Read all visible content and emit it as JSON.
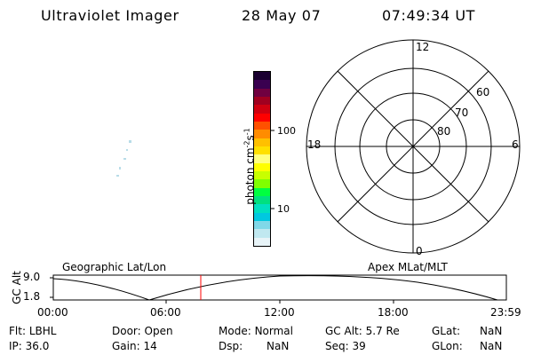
{
  "header": {
    "title": "Ultraviolet Imager",
    "date": "28 May 07",
    "time": "07:49:34 UT"
  },
  "colorbar": {
    "label": "photon cm",
    "label_sup1": "-2",
    "label_s": "s",
    "label_sup2": "-1",
    "tick_100": "100",
    "tick_10": "10",
    "colors_top_to_bottom": [
      "#1a0030",
      "#3a0050",
      "#700040",
      "#a00020",
      "#d00010",
      "#ff0000",
      "#ff5000",
      "#ff8c00",
      "#ffc000",
      "#ffe000",
      "#ffff80",
      "#ffff00",
      "#c8ff00",
      "#80ff00",
      "#00ff40",
      "#00e080",
      "#00e0c0",
      "#00c8e0",
      "#80d8e8",
      "#c0e8f0",
      "#e8f4f8"
    ]
  },
  "polar": {
    "label_12": "12",
    "label_18": "18",
    "label_6": "6",
    "label_0": "0",
    "label_60": "60",
    "label_70": "70",
    "label_80": "80"
  },
  "timeline": {
    "left_caption": "Geographic Lat/Lon",
    "right_caption": "Apex MLat/MLT",
    "axis_label": "GC Alt",
    "y_top": "9.0",
    "y_bottom": "1.8",
    "x_ticks": [
      "00:00",
      "06:00",
      "12:00",
      "18:00",
      "23:59"
    ],
    "current_marker_color": "#ff0000"
  },
  "status": {
    "filter_label": "Flt:",
    "filter_value": "LBHL",
    "door_label": "Door:",
    "door_value": "Open",
    "mode_label": "Mode:",
    "mode_value": "Normal",
    "gcalt_label": "GC Alt:",
    "gcalt_value": "5.7 Re",
    "glat_label": "GLat:",
    "glat_value": "NaN",
    "ip_label": "IP:",
    "ip_value": "36.0",
    "gain_label": "Gain:",
    "gain_value": "14",
    "dsp_label": "Dsp:",
    "dsp_value": "NaN",
    "seq_label": "Seq:",
    "seq_value": "39",
    "glon_label": "GLon:",
    "glon_value": "NaN"
  }
}
